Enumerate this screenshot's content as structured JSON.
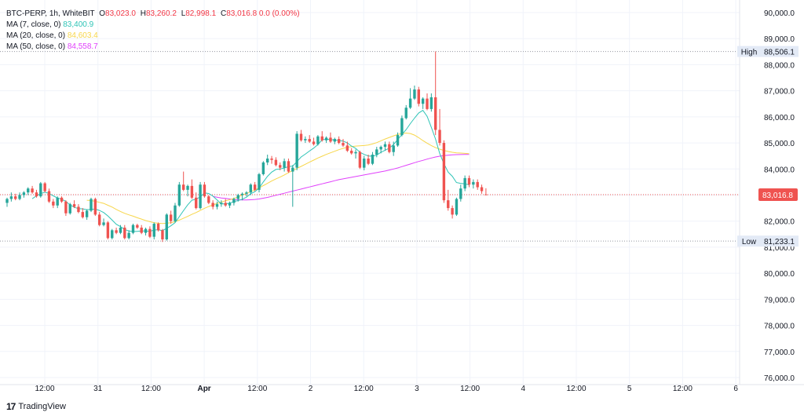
{
  "legend": {
    "symbol": "BTC-PERP, 1h, WhiteBIT",
    "ohlc": [
      {
        "key": "O",
        "value": "83,023.0"
      },
      {
        "key": "H",
        "value": "83,260.2"
      },
      {
        "key": "L",
        "value": "82,998.1"
      },
      {
        "key": "C",
        "value": "83,016.8"
      }
    ],
    "change": "0.0 (0.00%)",
    "mas": [
      {
        "label": "MA (7, close, 0)",
        "value": "83,400.9",
        "color": "#2ec4b6"
      },
      {
        "label": "MA (20, close, 0)",
        "value": "84,603.4",
        "color": "#f7d64a"
      },
      {
        "label": "MA (50, close, 0)",
        "value": "84,558.7",
        "color": "#e040fb"
      }
    ]
  },
  "brand": "TradingView",
  "chart_data": {
    "type": "candlestick",
    "y_ticks": [
      "90,000.0",
      "89,000.0",
      "88,000.0",
      "87,000.0",
      "86,000.0",
      "85,000.0",
      "84,000.0",
      "83,000.0",
      "82,000.0",
      "81,000.0",
      "80,000.0",
      "79,000.0",
      "78,000.0",
      "77,000.0",
      "76,000.0"
    ],
    "ylim": [
      75800,
      90300
    ],
    "x_ticks": [
      "12:00",
      "31",
      "12:00",
      "Apr",
      "12:00",
      "2",
      "12:00",
      "3",
      "12:00",
      "4",
      "12:00",
      "5",
      "12:00",
      "6"
    ],
    "x_tick_bold": [
      "Apr"
    ],
    "markers": [
      {
        "label": "High",
        "value": "88,506.1",
        "price": 88506.1
      },
      {
        "label": "Low",
        "value": "81,233.1",
        "price": 81233.1
      }
    ],
    "last_price": {
      "value": "83,016.8",
      "price": 83016.8
    },
    "up_color": "#26a69a",
    "down_color": "#ef5350",
    "candles": [
      [
        82700,
        82900,
        82550,
        82850
      ],
      [
        82850,
        83100,
        82750,
        82950
      ],
      [
        82950,
        83050,
        82800,
        82850
      ],
      [
        82850,
        83100,
        82800,
        83000
      ],
      [
        83000,
        83150,
        82900,
        83100
      ],
      [
        83100,
        83300,
        83000,
        83250
      ],
      [
        83250,
        83350,
        83050,
        83100
      ],
      [
        83100,
        83200,
        82900,
        82950
      ],
      [
        82950,
        83500,
        82900,
        83450
      ],
      [
        83450,
        83500,
        83100,
        83150
      ],
      [
        83150,
        83250,
        82700,
        82750
      ],
      [
        82750,
        82850,
        82500,
        82600
      ],
      [
        82600,
        82950,
        82500,
        82900
      ],
      [
        82900,
        82950,
        82700,
        82750
      ],
      [
        82750,
        82800,
        82200,
        82300
      ],
      [
        82300,
        82700,
        82250,
        82650
      ],
      [
        82650,
        82800,
        82500,
        82550
      ],
      [
        82550,
        82650,
        82300,
        82350
      ],
      [
        82350,
        82500,
        82100,
        82150
      ],
      [
        82150,
        82450,
        82050,
        82400
      ],
      [
        82400,
        82900,
        82350,
        82850
      ],
      [
        82850,
        82900,
        82200,
        82250
      ],
      [
        82250,
        82350,
        81800,
        81850
      ],
      [
        81850,
        82100,
        81800,
        81950
      ],
      [
        81950,
        82000,
        81300,
        81350
      ],
      [
        81350,
        81700,
        81300,
        81650
      ],
      [
        81650,
        81750,
        81500,
        81550
      ],
      [
        81550,
        81850,
        81500,
        81750
      ],
      [
        81750,
        81850,
        81300,
        81350
      ],
      [
        81350,
        81650,
        81300,
        81550
      ],
      [
        81550,
        81900,
        81500,
        81850
      ],
      [
        81850,
        81900,
        81700,
        81750
      ],
      [
        81750,
        81850,
        81500,
        81550
      ],
      [
        81550,
        81750,
        81450,
        81700
      ],
      [
        81700,
        81800,
        81350,
        81400
      ],
      [
        81400,
        81950,
        81300,
        81900
      ],
      [
        81900,
        81950,
        81600,
        81650
      ],
      [
        81650,
        81700,
        81200,
        81300
      ],
      [
        81300,
        82300,
        81250,
        82250
      ],
      [
        82250,
        82400,
        81900,
        82000
      ],
      [
        82000,
        82700,
        81950,
        82600
      ],
      [
        82600,
        83500,
        82550,
        83400
      ],
      [
        83400,
        83900,
        83150,
        83200
      ],
      [
        83200,
        83400,
        82950,
        83350
      ],
      [
        83350,
        83600,
        82850,
        82900
      ],
      [
        82900,
        83100,
        82450,
        82500
      ],
      [
        82500,
        83500,
        82450,
        83400
      ],
      [
        83400,
        83500,
        82900,
        82950
      ],
      [
        82950,
        83000,
        82650,
        82700
      ],
      [
        82700,
        82800,
        82450,
        82550
      ],
      [
        82550,
        82750,
        82450,
        82650
      ],
      [
        82650,
        82800,
        82550,
        82700
      ],
      [
        82700,
        82850,
        82550,
        82600
      ],
      [
        82600,
        82750,
        82500,
        82700
      ],
      [
        82700,
        82900,
        82600,
        82850
      ],
      [
        82850,
        83050,
        82750,
        83000
      ],
      [
        83000,
        83100,
        82800,
        83050
      ],
      [
        83050,
        83150,
        82950,
        83100
      ],
      [
        83100,
        83450,
        83000,
        83400
      ],
      [
        83400,
        83500,
        83150,
        83200
      ],
      [
        83200,
        83850,
        83100,
        83800
      ],
      [
        83800,
        84300,
        83750,
        84250
      ],
      [
        84250,
        84550,
        84150,
        84400
      ],
      [
        84400,
        84500,
        84200,
        84350
      ],
      [
        84350,
        84450,
        84100,
        84150
      ],
      [
        84150,
        84250,
        83950,
        84050
      ],
      [
        84050,
        84400,
        83900,
        84300
      ],
      [
        84300,
        84400,
        83850,
        83900
      ],
      [
        83900,
        84150,
        82550,
        84050
      ],
      [
        84050,
        85450,
        83950,
        85350
      ],
      [
        85350,
        85500,
        85050,
        85100
      ],
      [
        85100,
        85250,
        85000,
        85150
      ],
      [
        85150,
        85300,
        85000,
        85050
      ],
      [
        85050,
        85200,
        84900,
        84950
      ],
      [
        84950,
        85300,
        84900,
        85250
      ],
      [
        85250,
        85450,
        85050,
        85100
      ],
      [
        85100,
        85250,
        85000,
        85200
      ],
      [
        85200,
        85400,
        85000,
        85050
      ],
      [
        85050,
        85200,
        84950,
        85150
      ],
      [
        85150,
        85250,
        84950,
        85000
      ],
      [
        85000,
        85150,
        84850,
        84900
      ],
      [
        84900,
        85050,
        84650,
        84700
      ],
      [
        84700,
        84800,
        84550,
        84600
      ],
      [
        84600,
        84750,
        84400,
        84650
      ],
      [
        84650,
        84700,
        84000,
        84050
      ],
      [
        84050,
        84500,
        83950,
        84400
      ],
      [
        84400,
        84550,
        84150,
        84200
      ],
      [
        84200,
        84650,
        84150,
        84550
      ],
      [
        84550,
        84850,
        84450,
        84750
      ],
      [
        84750,
        84900,
        84600,
        84850
      ],
      [
        84850,
        85050,
        84700,
        84950
      ],
      [
        84950,
        85050,
        84600,
        84650
      ],
      [
        84650,
        85050,
        84500,
        84900
      ],
      [
        84900,
        85400,
        84850,
        85300
      ],
      [
        85300,
        86050,
        85250,
        85950
      ],
      [
        85950,
        86450,
        85900,
        86350
      ],
      [
        86350,
        87100,
        86300,
        86700
      ],
      [
        86700,
        87200,
        86650,
        87050
      ],
      [
        87050,
        87150,
        86400,
        86500
      ],
      [
        86500,
        86750,
        86300,
        86700
      ],
      [
        86700,
        86900,
        86250,
        86300
      ],
      [
        86300,
        86900,
        86200,
        86750
      ],
      [
        86750,
        88506.1,
        85300,
        85500
      ],
      [
        85500,
        86300,
        84900,
        85000
      ],
      [
        85000,
        85100,
        82700,
        82800
      ],
      [
        82800,
        83200,
        82400,
        82500
      ],
      [
        82500,
        82600,
        82100,
        82250
      ],
      [
        82250,
        82900,
        82200,
        82850
      ],
      [
        82850,
        83400,
        82750,
        83250
      ],
      [
        83250,
        83750,
        83150,
        83650
      ],
      [
        83650,
        83750,
        83300,
        83400
      ],
      [
        83400,
        83600,
        83250,
        83500
      ],
      [
        83500,
        83600,
        83200,
        83300
      ],
      [
        83300,
        83400,
        83050,
        83150
      ],
      [
        83023.0,
        83260.2,
        82998.1,
        83016.8
      ]
    ],
    "ma7": [
      null,
      null,
      null,
      null,
      null,
      null,
      82860,
      82970,
      83050,
      83110,
      83060,
      82970,
      82890,
      82840,
      82760,
      82620,
      82530,
      82480,
      82470,
      82440,
      82450,
      82460,
      82410,
      82330,
      82200,
      82040,
      81880,
      81790,
      81680,
      81620,
      81600,
      81610,
      81620,
      81620,
      81610,
      81660,
      81670,
      81640,
      81720,
      81820,
      81940,
      82170,
      82400,
      82620,
      82800,
      82840,
      82930,
      83080,
      83060,
      82960,
      82810,
      82660,
      82660,
      82690,
      82750,
      82790,
      82840,
      82920,
      83050,
      83130,
      83270,
      83500,
      83720,
      83880,
      83980,
      84000,
      84040,
      84090,
      84110,
      84280,
      84460,
      84570,
      84690,
      84800,
      84940,
      85120,
      85140,
      85130,
      85110,
      85090,
      85070,
      85000,
      84880,
      84790,
      84640,
      84560,
      84500,
      84490,
      84530,
      84640,
      84720,
      84800,
      84940,
      85130,
      85320,
      85510,
      85740,
      85950,
      86150,
      86250,
      86020,
      85600,
      85150,
      84600,
      84200,
      83880,
      83720,
      83480,
      83450,
      83430,
      83390
    ],
    "ma20": [
      null,
      null,
      null,
      null,
      null,
      null,
      null,
      null,
      null,
      null,
      null,
      null,
      null,
      null,
      null,
      null,
      null,
      null,
      null,
      82800,
      82790,
      82760,
      82720,
      82680,
      82610,
      82540,
      82450,
      82370,
      82300,
      82240,
      82190,
      82130,
      82080,
      82020,
      81980,
      81940,
      81920,
      81910,
      81920,
      81940,
      81980,
      82040,
      82110,
      82180,
      82260,
      82330,
      82410,
      82490,
      82560,
      82620,
      82680,
      82730,
      82780,
      82820,
      82870,
      82930,
      83000,
      83060,
      83130,
      83200,
      83270,
      83360,
      83450,
      83540,
      83620,
      83690,
      83770,
      83860,
      83940,
      84020,
      84100,
      84180,
      84260,
      84340,
      84420,
      84490,
      84560,
      84620,
      84680,
      84740,
      84790,
      84830,
      84860,
      84880,
      84890,
      84900,
      84920,
      84960,
      85010,
      85080,
      85150,
      85210,
      85270,
      85320,
      85360,
      85380,
      85360,
      85300,
      85200,
      85090,
      84990,
      84900,
      84820,
      84760,
      84710,
      84670,
      84640,
      84620,
      84610,
      84600,
      84590
    ],
    "ma50": [
      null,
      null,
      null,
      null,
      null,
      null,
      null,
      null,
      null,
      null,
      null,
      null,
      null,
      null,
      null,
      null,
      null,
      null,
      null,
      null,
      null,
      null,
      null,
      null,
      null,
      null,
      null,
      null,
      null,
      null,
      null,
      null,
      null,
      null,
      null,
      null,
      null,
      null,
      null,
      null,
      null,
      null,
      null,
      null,
      null,
      null,
      null,
      null,
      null,
      82950,
      82920,
      82890,
      82870,
      82850,
      82830,
      82820,
      82810,
      82810,
      82820,
      82830,
      82850,
      82880,
      82910,
      82950,
      82990,
      83030,
      83070,
      83110,
      83150,
      83190,
      83230,
      83270,
      83310,
      83350,
      83390,
      83430,
      83470,
      83510,
      83550,
      83590,
      83620,
      83650,
      83680,
      83710,
      83740,
      83770,
      83800,
      83830,
      83860,
      83890,
      83920,
      83960,
      84000,
      84040,
      84090,
      84140,
      84190,
      84240,
      84290,
      84330,
      84380,
      84420,
      84460,
      84490,
      84510,
      84530,
      84540,
      84550,
      84555,
      84558,
      84558.7
    ]
  }
}
